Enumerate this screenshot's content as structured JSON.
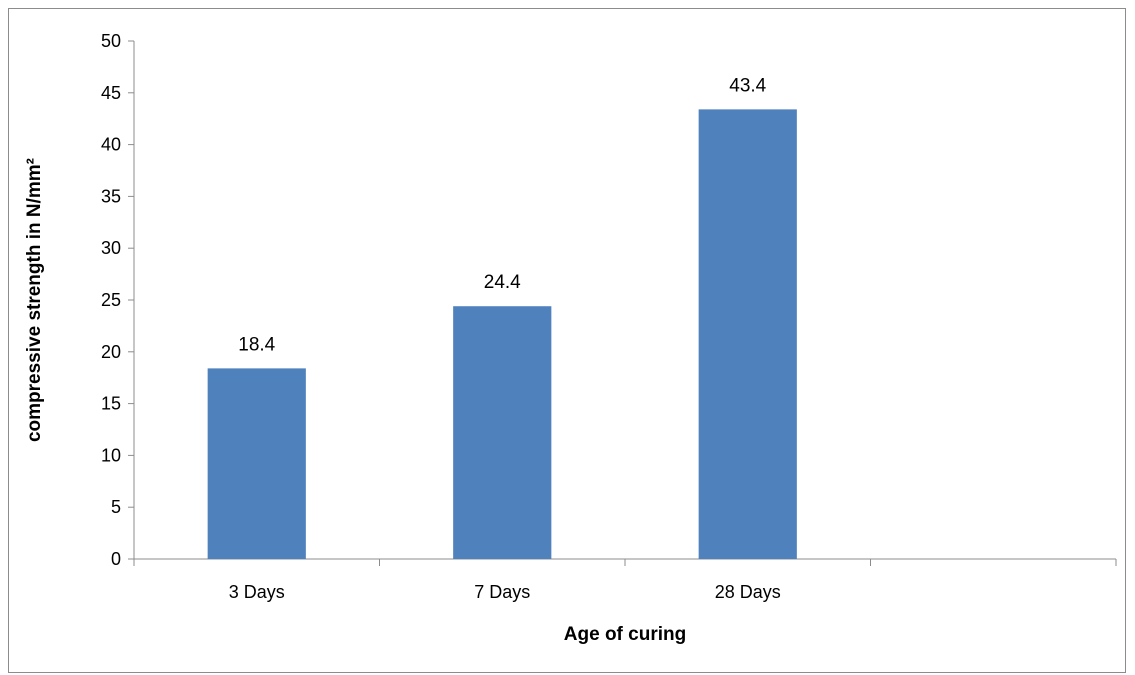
{
  "chart_data": {
    "type": "bar",
    "categories": [
      "3 Days",
      "7 Days",
      "28 Days",
      ""
    ],
    "values": [
      18.4,
      24.4,
      43.4,
      null
    ],
    "data_labels": [
      "18.4",
      "24.4",
      "43.4",
      ""
    ],
    "xlabel": "Age of curing",
    "ylabel": "compressive strength in N/mm²",
    "ylim": [
      0,
      50
    ],
    "yticks": [
      0,
      5,
      10,
      15,
      20,
      25,
      30,
      35,
      40,
      45,
      50
    ],
    "grid": false,
    "legend": "none",
    "bar_color": "#4f81bd"
  }
}
